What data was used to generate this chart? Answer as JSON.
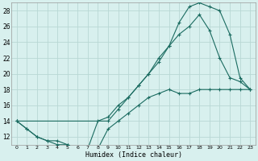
{
  "xlabel": "Humidex (Indice chaleur)",
  "bg_color": "#d8f0ee",
  "grid_color": "#b8d8d4",
  "line_color": "#1a6b60",
  "xlim": [
    -0.5,
    23.5
  ],
  "ylim": [
    11,
    29
  ],
  "xticks": [
    0,
    1,
    2,
    3,
    4,
    5,
    6,
    7,
    8,
    9,
    10,
    11,
    12,
    13,
    14,
    15,
    16,
    17,
    18,
    19,
    20,
    21,
    22,
    23
  ],
  "yticks": [
    12,
    14,
    16,
    18,
    20,
    22,
    24,
    26,
    28
  ],
  "line1_x": [
    0,
    1,
    2,
    3,
    4,
    5,
    6,
    7,
    8,
    9,
    10,
    11,
    12,
    13,
    14,
    15,
    16,
    17,
    18,
    19,
    20,
    21,
    22,
    23
  ],
  "line1_y": [
    14,
    13,
    12,
    11.5,
    11.5,
    11,
    10.5,
    10.5,
    10.5,
    13,
    14,
    15,
    16,
    17,
    17.5,
    18,
    17.5,
    17.5,
    18,
    18,
    18,
    18,
    18,
    18
  ],
  "line2_x": [
    0,
    1,
    2,
    3,
    4,
    5,
    6,
    7,
    8,
    9,
    10,
    11,
    12,
    13,
    14,
    15,
    16,
    17,
    18,
    19,
    20,
    21,
    22,
    23
  ],
  "line2_y": [
    14,
    13,
    12,
    11.5,
    11,
    11,
    10.5,
    10.5,
    14,
    14.5,
    16,
    17,
    18.5,
    20,
    22,
    23.5,
    25,
    26,
    27.5,
    25.5,
    22,
    19.5,
    19,
    18
  ],
  "line3_x": [
    0,
    9,
    10,
    11,
    12,
    13,
    14,
    15,
    16,
    17,
    18,
    19,
    20,
    21,
    22,
    23
  ],
  "line3_y": [
    14,
    14,
    15.5,
    17,
    18.5,
    20,
    21.5,
    23.5,
    26.5,
    28.5,
    29,
    28.5,
    28,
    25,
    19.5,
    18
  ]
}
